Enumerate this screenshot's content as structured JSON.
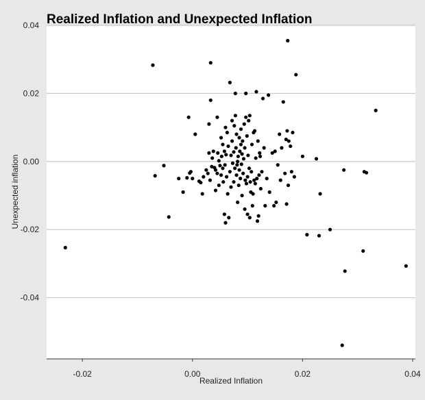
{
  "chart_data": {
    "type": "scatter",
    "title": "Realized Inflation and Unexpected Inflation",
    "xlabel": "Realized Inflation",
    "ylabel": "Unexpected inflation",
    "xlim": [
      -0.0265,
      0.0405
    ],
    "ylim": [
      -0.058,
      0.04
    ],
    "x_ticks": [
      -0.02,
      0.0,
      0.02,
      0.04
    ],
    "x_tick_labels": [
      "-0.02",
      "0.00",
      "0.02",
      "0.04"
    ],
    "y_ticks": [
      -0.04,
      -0.02,
      0.0,
      0.02,
      0.04
    ],
    "y_tick_labels": [
      "-0.04",
      "-0.02",
      "0.00",
      "0.02",
      "0.04"
    ],
    "grid": "horizontal",
    "colors": {
      "background": "#e8e8e8",
      "plot_area": "#ffffff",
      "grid": "#c8c8c8",
      "marker": "#000000"
    },
    "points": [
      [
        -0.0231,
        -0.0253
      ],
      [
        -0.0072,
        0.0283
      ],
      [
        -0.0068,
        -0.0042
      ],
      [
        -0.0052,
        -0.0012
      ],
      [
        -0.0043,
        -0.0163
      ],
      [
        -0.0025,
        -0.005
      ],
      [
        -0.0017,
        -0.009
      ],
      [
        -0.001,
        -0.0048
      ],
      [
        -0.0007,
        0.013
      ],
      [
        -0.0005,
        -0.0034
      ],
      [
        -0.0003,
        -0.003
      ],
      [
        0.0,
        -0.005
      ],
      [
        0.0005,
        0.008
      ],
      [
        0.0012,
        -0.0058
      ],
      [
        0.0015,
        -0.0062
      ],
      [
        0.0018,
        -0.0095
      ],
      [
        0.002,
        -0.0045
      ],
      [
        0.0025,
        -0.0025
      ],
      [
        0.0028,
        -0.0035
      ],
      [
        0.003,
        0.011
      ],
      [
        0.003,
        0.0025
      ],
      [
        0.0032,
        -0.0055
      ],
      [
        0.0033,
        0.029
      ],
      [
        0.0033,
        0.018
      ],
      [
        0.0035,
        -0.0015
      ],
      [
        0.0036,
        0.001
      ],
      [
        0.0038,
        0.003
      ],
      [
        0.004,
        -0.0018
      ],
      [
        0.0042,
        -0.0025
      ],
      [
        0.0042,
        -0.0085
      ],
      [
        0.0045,
        0.013
      ],
      [
        0.0045,
        -0.0035
      ],
      [
        0.0046,
        0.0025
      ],
      [
        0.0048,
        -0.007
      ],
      [
        0.0048,
        0.0002
      ],
      [
        0.005,
        -0.0012
      ],
      [
        0.0052,
        0.007
      ],
      [
        0.0052,
        -0.004
      ],
      [
        0.0053,
        0.0015
      ],
      [
        0.0055,
        -0.002
      ],
      [
        0.0055,
        0.005
      ],
      [
        0.0056,
        -0.006
      ],
      [
        0.0058,
        -0.0155
      ],
      [
        0.0058,
        0.003
      ],
      [
        0.0059,
        -0.001
      ],
      [
        0.006,
        -0.018
      ],
      [
        0.006,
        0.01
      ],
      [
        0.0061,
        0.002
      ],
      [
        0.0062,
        -0.0045
      ],
      [
        0.0063,
        0.0085
      ],
      [
        0.0064,
        -0.0095
      ],
      [
        0.0065,
        0.0045
      ],
      [
        0.0066,
        -0.0165
      ],
      [
        0.0068,
        0.0232
      ],
      [
        0.0068,
        -0.003
      ],
      [
        0.007,
        0.0018
      ],
      [
        0.007,
        -0.0075
      ],
      [
        0.0072,
        0.012
      ],
      [
        0.0072,
        0.006
      ],
      [
        0.0073,
        -0.0005
      ],
      [
        0.0075,
        0.0028
      ],
      [
        0.0075,
        -0.006
      ],
      [
        0.0076,
        0.0105
      ],
      [
        0.0077,
        -0.002
      ],
      [
        0.0078,
        0.02
      ],
      [
        0.0078,
        0.0135
      ],
      [
        0.0079,
        0.004
      ],
      [
        0.008,
        -0.004
      ],
      [
        0.008,
        0.008
      ],
      [
        0.0081,
        -0.001
      ],
      [
        0.0082,
        -0.012
      ],
      [
        0.0082,
        0.0
      ],
      [
        0.0083,
        0.0015
      ],
      [
        0.0084,
        -0.007
      ],
      [
        0.0085,
        0.007
      ],
      [
        0.0085,
        -0.0025
      ],
      [
        0.0086,
        0.003
      ],
      [
        0.0087,
        -0.005
      ],
      [
        0.0088,
        0.0095
      ],
      [
        0.0088,
        0.005
      ],
      [
        0.0089,
        -0.0008
      ],
      [
        0.009,
        0.0022
      ],
      [
        0.009,
        -0.01
      ],
      [
        0.0091,
        0.006
      ],
      [
        0.0092,
        -0.0035
      ],
      [
        0.0093,
        0.0008
      ],
      [
        0.0094,
        0.011
      ],
      [
        0.0095,
        -0.014
      ],
      [
        0.0095,
        0.004
      ],
      [
        0.0096,
        -0.0055
      ],
      [
        0.0097,
        0.013
      ],
      [
        0.0097,
        0.02
      ],
      [
        0.0098,
        -0.0065
      ],
      [
        0.0099,
        0.0075
      ],
      [
        0.01,
        -0.0045
      ],
      [
        0.01,
        -0.0155
      ],
      [
        0.0101,
        0.0018
      ],
      [
        0.0102,
        0.012
      ],
      [
        0.0103,
        -0.002
      ],
      [
        0.0104,
        0.0135
      ],
      [
        0.0104,
        -0.0165
      ],
      [
        0.0105,
        -0.006
      ],
      [
        0.0106,
        -0.009
      ],
      [
        0.0107,
        -0.003
      ],
      [
        0.0108,
        0.005
      ],
      [
        0.0109,
        -0.013
      ],
      [
        0.011,
        -0.0095
      ],
      [
        0.0111,
        0.0085
      ],
      [
        0.0112,
        -0.0055
      ],
      [
        0.0113,
        0.009
      ],
      [
        0.0114,
        -0.0065
      ],
      [
        0.0115,
        0.001
      ],
      [
        0.0116,
        0.0205
      ],
      [
        0.0117,
        -0.005
      ],
      [
        0.0118,
        -0.0175
      ],
      [
        0.0119,
        0.006
      ],
      [
        0.012,
        -0.016
      ],
      [
        0.0121,
        -0.004
      ],
      [
        0.0122,
        0.0025
      ],
      [
        0.0123,
        0.0015
      ],
      [
        0.0124,
        -0.008
      ],
      [
        0.0126,
        -0.003
      ],
      [
        0.0128,
        0.0185
      ],
      [
        0.013,
        0.004
      ],
      [
        0.0132,
        -0.013
      ],
      [
        0.0135,
        -0.005
      ],
      [
        0.0138,
        0.0195
      ],
      [
        0.014,
        -0.009
      ],
      [
        0.0145,
        0.0025
      ],
      [
        0.0148,
        -0.013
      ],
      [
        0.015,
        0.003
      ],
      [
        0.0152,
        -0.012
      ],
      [
        0.0155,
        -0.001
      ],
      [
        0.0158,
        0.008
      ],
      [
        0.016,
        -0.0055
      ],
      [
        0.0162,
        0.004
      ],
      [
        0.0165,
        0.0175
      ],
      [
        0.0168,
        -0.0035
      ],
      [
        0.017,
        0.0065
      ],
      [
        0.0171,
        -0.0125
      ],
      [
        0.0172,
        0.009
      ],
      [
        0.0173,
        0.0355
      ],
      [
        0.0174,
        -0.007
      ],
      [
        0.0175,
        0.006
      ],
      [
        0.0178,
        0.0045
      ],
      [
        0.018,
        -0.003
      ],
      [
        0.0182,
        0.0085
      ],
      [
        0.0185,
        -0.0045
      ],
      [
        0.0188,
        0.0255
      ],
      [
        0.02,
        0.0015
      ],
      [
        0.0208,
        -0.0215
      ],
      [
        0.0225,
        0.0008
      ],
      [
        0.023,
        -0.0218
      ],
      [
        0.0232,
        -0.0095
      ],
      [
        0.025,
        -0.02
      ],
      [
        0.0272,
        -0.054
      ],
      [
        0.0275,
        -0.0025
      ],
      [
        0.0277,
        -0.0322
      ],
      [
        0.031,
        -0.0263
      ],
      [
        0.0312,
        -0.003
      ],
      [
        0.0316,
        -0.0033
      ],
      [
        0.0333,
        0.015
      ],
      [
        0.0388,
        -0.0307
      ]
    ]
  }
}
